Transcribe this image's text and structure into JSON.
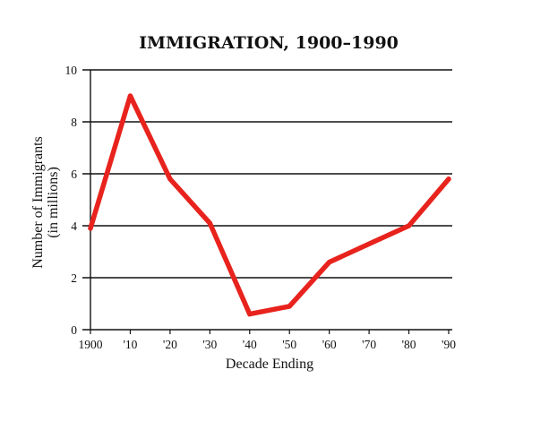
{
  "chart_data": {
    "type": "line",
    "title": "IMMIGRATION, 1900–1990",
    "xlabel": "Decade Ending",
    "ylabel": "Number of Immigrants",
    "ylabel2": "(in millions)",
    "categories": [
      "1900",
      "'10",
      "'20",
      "'30",
      "'40",
      "'50",
      "'60",
      "'70",
      "'80",
      "'90"
    ],
    "series": [
      {
        "values": [
          3.9,
          9.0,
          5.8,
          4.1,
          0.6,
          0.9,
          2.6,
          3.3,
          4.0,
          5.8
        ]
      }
    ],
    "yticks": [
      0,
      2,
      4,
      6,
      8,
      10
    ],
    "ylim": [
      0,
      10
    ],
    "grid": true,
    "line_color": "#e8231d"
  }
}
